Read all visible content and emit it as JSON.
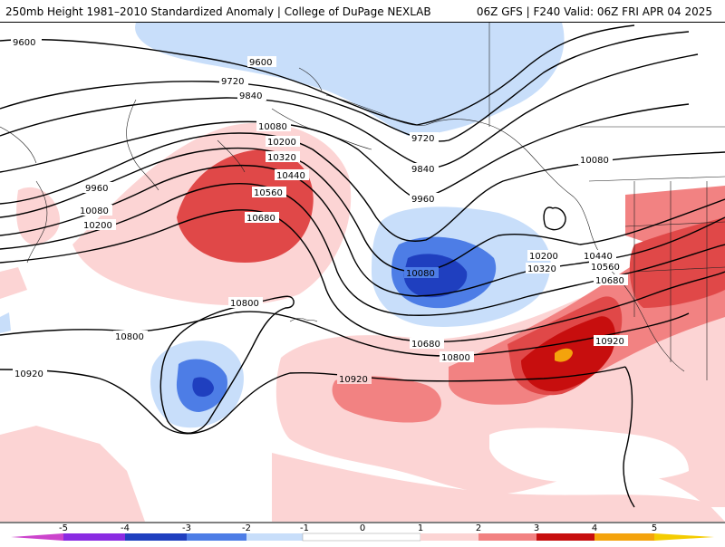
{
  "header": {
    "left_title": "250mb Height 1981–2010 Standardized Anomaly | College of DuPage NEXLAB",
    "right_title": "06Z GFS | F240 Valid: 06Z FRI APR 04 2025"
  },
  "anomaly_colors": {
    "neg5": "#cc44cc",
    "neg4": "#8a2be2",
    "neg3": "#1f3fbf",
    "neg2": "#4d7de6",
    "neg1": "#c8defa",
    "zero": "#ffffff",
    "pos1": "#fcd4d4",
    "pos2": "#f28282",
    "pos3": "#e04848",
    "pos4": "#c70e0e",
    "pos5": "#f4a30c"
  },
  "contour_labels": [
    "9600",
    "9600",
    "9720",
    "9840",
    "9720",
    "9840",
    "9960",
    "9960",
    "10080",
    "10200",
    "10320",
    "10440",
    "10560",
    "10680",
    "10080",
    "10200",
    "10080",
    "10080",
    "10200",
    "10320",
    "10440",
    "10560",
    "10680",
    "10800",
    "10800",
    "10680",
    "10800",
    "10920",
    "10920",
    "10920"
  ],
  "colorbar": {
    "ticks": [
      "-5",
      "-4",
      "-3",
      "-2",
      "-1",
      "0",
      "1",
      "2",
      "3",
      "4",
      "5"
    ]
  }
}
